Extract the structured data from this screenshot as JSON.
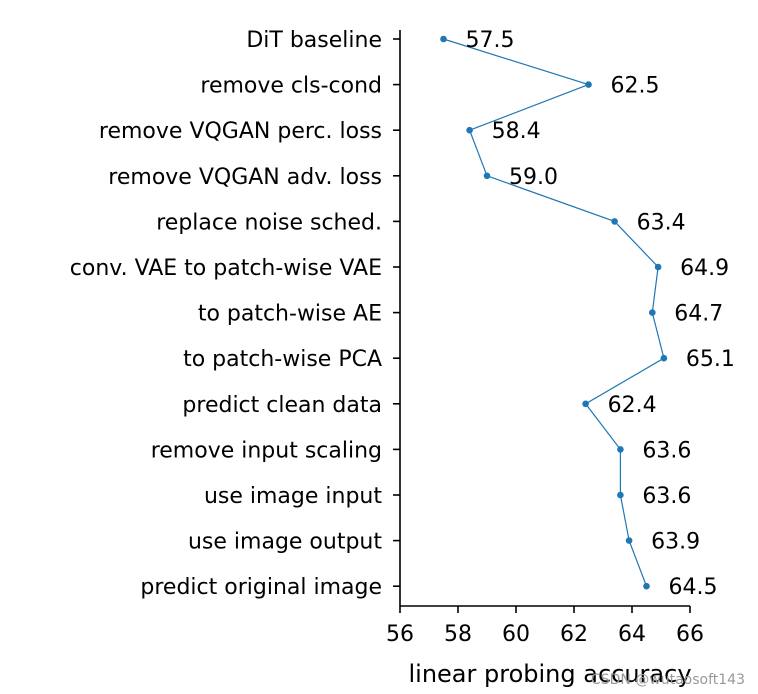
{
  "chart_data": {
    "type": "line",
    "orientation": "horizontal",
    "categories": [
      "DiT baseline",
      "remove cls-cond",
      "remove VQGAN perc. loss",
      "remove VQGAN adv. loss",
      "replace noise sched.",
      "conv. VAE to patch-wise VAE",
      "to patch-wise AE",
      "to patch-wise PCA",
      "predict clean data",
      "remove input scaling",
      "use image input",
      "use image output",
      "predict original image"
    ],
    "values": [
      57.5,
      62.5,
      58.4,
      59.0,
      63.4,
      64.9,
      64.7,
      65.1,
      62.4,
      63.6,
      63.6,
      63.9,
      64.5
    ],
    "value_labels": [
      "57.5",
      "62.5",
      "58.4",
      "59.0",
      "63.4",
      "64.9",
      "64.7",
      "65.1",
      "62.4",
      "63.6",
      "63.6",
      "63.9",
      "64.5"
    ],
    "title": "",
    "xlabel": "linear probing accuracy",
    "ylabel": "",
    "xlim": [
      56,
      66
    ],
    "xticks": [
      56,
      58,
      60,
      62,
      64,
      66
    ],
    "xtick_labels": [
      "56",
      "58",
      "60",
      "62",
      "64",
      "66"
    ],
    "grid": false,
    "legend": "none",
    "line_color": "#1f77b4"
  },
  "watermark": "CSDN @wutaosoft143"
}
